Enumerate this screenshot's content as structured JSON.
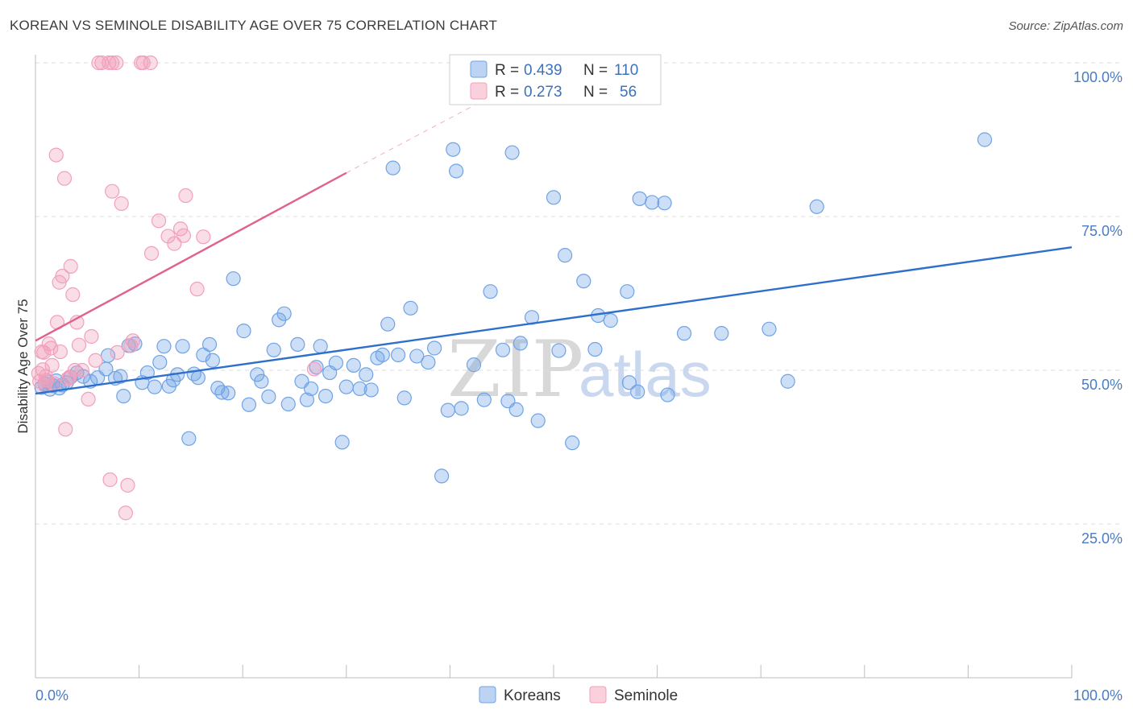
{
  "title": "KOREAN VS SEMINOLE DISABILITY AGE OVER 75 CORRELATION CHART",
  "source": "Source: ZipAtlas.com",
  "watermark": {
    "zip": "ZIP",
    "atlas": "atlas"
  },
  "chart_data": {
    "type": "scatter",
    "xlabel": "",
    "ylabel": "Disability Age Over 75",
    "xlim": [
      0,
      100
    ],
    "ylim": [
      0,
      100
    ],
    "x_tick_labels": [
      {
        "value": 0,
        "label": "0.0%"
      },
      {
        "value": 100,
        "label": "100.0%"
      }
    ],
    "y_tick_labels": [
      {
        "value": 25,
        "label": "25.0%"
      },
      {
        "value": 50,
        "label": "50.0%"
      },
      {
        "value": 75,
        "label": "75.0%"
      },
      {
        "value": 100,
        "label": "100.0%"
      }
    ],
    "grid": "dashed horizontal",
    "legend_position": "top-center",
    "legend": [
      {
        "series": "Koreans",
        "r_label": "R =",
        "r_value": "0.439",
        "n_label": "N =",
        "n_value": "110"
      },
      {
        "series": "Seminole",
        "r_label": "R =",
        "r_value": "0.273",
        "n_label": "N =",
        "n_value": "56"
      }
    ],
    "series": [
      {
        "name": "Koreans",
        "color": "#6fa3e6",
        "line_color": "#2e6fcc",
        "trend": {
          "x": [
            0,
            100
          ],
          "y": [
            46.2,
            70.0
          ],
          "dashed_after": null
        },
        "points": [
          [
            0.6,
            47.2
          ],
          [
            0.9,
            47.8
          ],
          [
            1.2,
            48.1
          ],
          [
            1.4,
            46.9
          ],
          [
            1.7,
            47.5
          ],
          [
            2.0,
            48.3
          ],
          [
            2.3,
            47.1
          ],
          [
            2.6,
            47.6
          ],
          [
            3.0,
            48.0
          ],
          [
            3.4,
            48.9
          ],
          [
            4.0,
            49.6
          ],
          [
            4.6,
            49.0
          ],
          [
            5.3,
            48.2
          ],
          [
            6.0,
            48.8
          ],
          [
            6.8,
            50.2
          ],
          [
            7.0,
            52.4
          ],
          [
            7.7,
            48.7
          ],
          [
            8.2,
            49.0
          ],
          [
            8.5,
            45.8
          ],
          [
            9.0,
            54.0
          ],
          [
            9.6,
            54.3
          ],
          [
            10.3,
            48.0
          ],
          [
            10.8,
            49.6
          ],
          [
            11.5,
            47.3
          ],
          [
            12.0,
            51.3
          ],
          [
            12.4,
            53.9
          ],
          [
            12.9,
            47.4
          ],
          [
            13.3,
            48.4
          ],
          [
            13.7,
            49.3
          ],
          [
            14.2,
            53.9
          ],
          [
            14.8,
            38.9
          ],
          [
            15.3,
            49.4
          ],
          [
            15.7,
            48.8
          ],
          [
            16.2,
            52.5
          ],
          [
            16.8,
            54.2
          ],
          [
            17.1,
            51.6
          ],
          [
            17.6,
            47.1
          ],
          [
            18.0,
            46.4
          ],
          [
            18.6,
            46.3
          ],
          [
            19.1,
            64.9
          ],
          [
            20.1,
            56.4
          ],
          [
            20.6,
            44.4
          ],
          [
            21.4,
            49.3
          ],
          [
            21.8,
            48.2
          ],
          [
            22.5,
            45.7
          ],
          [
            23.0,
            53.3
          ],
          [
            23.5,
            58.2
          ],
          [
            24.0,
            59.2
          ],
          [
            24.4,
            44.5
          ],
          [
            25.3,
            54.2
          ],
          [
            25.7,
            48.2
          ],
          [
            26.2,
            45.2
          ],
          [
            26.6,
            47.0
          ],
          [
            27.1,
            50.5
          ],
          [
            27.5,
            53.9
          ],
          [
            28.0,
            45.8
          ],
          [
            28.4,
            49.6
          ],
          [
            29.0,
            51.2
          ],
          [
            29.6,
            38.3
          ],
          [
            30.0,
            47.3
          ],
          [
            30.7,
            50.8
          ],
          [
            31.3,
            47.0
          ],
          [
            31.9,
            49.3
          ],
          [
            32.4,
            46.8
          ],
          [
            33.0,
            52.0
          ],
          [
            33.5,
            52.5
          ],
          [
            34.0,
            57.5
          ],
          [
            34.5,
            82.9
          ],
          [
            35.0,
            52.5
          ],
          [
            35.6,
            45.5
          ],
          [
            36.2,
            60.1
          ],
          [
            36.8,
            52.3
          ],
          [
            37.9,
            51.3
          ],
          [
            38.5,
            53.6
          ],
          [
            39.2,
            32.8
          ],
          [
            39.8,
            43.5
          ],
          [
            40.3,
            85.9
          ],
          [
            40.6,
            82.4
          ],
          [
            41.1,
            43.8
          ],
          [
            42.3,
            50.9
          ],
          [
            43.3,
            45.2
          ],
          [
            43.9,
            62.8
          ],
          [
            45.1,
            53.3
          ],
          [
            46.0,
            85.4
          ],
          [
            45.6,
            45.0
          ],
          [
            46.4,
            43.6
          ],
          [
            46.8,
            54.4
          ],
          [
            47.9,
            58.6
          ],
          [
            48.5,
            41.8
          ],
          [
            50.0,
            78.1
          ],
          [
            50.5,
            53.2
          ],
          [
            51.1,
            68.7
          ],
          [
            51.8,
            38.2
          ],
          [
            52.9,
            64.5
          ],
          [
            54.0,
            53.4
          ],
          [
            54.3,
            58.9
          ],
          [
            55.5,
            58.1
          ],
          [
            57.1,
            62.8
          ],
          [
            57.3,
            48.0
          ],
          [
            58.1,
            46.5
          ],
          [
            58.3,
            77.9
          ],
          [
            59.5,
            77.3
          ],
          [
            60.7,
            77.2
          ],
          [
            61.0,
            46.0
          ],
          [
            62.6,
            56.0
          ],
          [
            66.2,
            56.0
          ],
          [
            70.8,
            56.7
          ],
          [
            72.6,
            48.2
          ],
          [
            75.4,
            76.6
          ],
          [
            91.6,
            87.5
          ]
        ]
      },
      {
        "name": "Seminole",
        "color": "#f2a0ba",
        "line_color": "#e06090",
        "trend": {
          "x": [
            0,
            30
          ],
          "y": [
            54.8,
            82.1
          ],
          "dashed_to": [
            44.5,
            95.0
          ]
        },
        "points": [
          [
            0.3,
            49.5
          ],
          [
            0.4,
            48.2
          ],
          [
            0.6,
            53.0
          ],
          [
            0.7,
            50.1
          ],
          [
            0.8,
            52.9
          ],
          [
            0.9,
            47.6
          ],
          [
            1.0,
            49.0
          ],
          [
            1.1,
            48.4
          ],
          [
            1.3,
            54.3
          ],
          [
            1.5,
            53.6
          ],
          [
            1.6,
            50.8
          ],
          [
            1.8,
            47.8
          ],
          [
            2.0,
            85.0
          ],
          [
            2.1,
            57.8
          ],
          [
            2.3,
            64.3
          ],
          [
            2.4,
            53.0
          ],
          [
            2.6,
            65.3
          ],
          [
            2.8,
            81.2
          ],
          [
            2.9,
            40.4
          ],
          [
            3.1,
            48.6
          ],
          [
            3.3,
            48.9
          ],
          [
            3.4,
            66.9
          ],
          [
            3.6,
            62.3
          ],
          [
            3.8,
            50.0
          ],
          [
            4.0,
            57.8
          ],
          [
            4.2,
            54.1
          ],
          [
            4.5,
            50.0
          ],
          [
            5.1,
            45.3
          ],
          [
            5.4,
            55.5
          ],
          [
            5.8,
            51.6
          ],
          [
            6.1,
            100.0
          ],
          [
            6.4,
            100.0
          ],
          [
            7.1,
            100.0
          ],
          [
            7.4,
            100.0
          ],
          [
            7.8,
            100.0
          ],
          [
            7.2,
            32.2
          ],
          [
            7.4,
            79.1
          ],
          [
            7.9,
            52.9
          ],
          [
            8.3,
            77.1
          ],
          [
            8.7,
            26.8
          ],
          [
            8.9,
            31.3
          ],
          [
            9.2,
            54.0
          ],
          [
            9.4,
            54.8
          ],
          [
            10.2,
            100.0
          ],
          [
            10.4,
            100.0
          ],
          [
            11.1,
            100.0
          ],
          [
            11.2,
            69.0
          ],
          [
            11.9,
            74.3
          ],
          [
            12.8,
            71.8
          ],
          [
            13.4,
            70.6
          ],
          [
            14.0,
            73.0
          ],
          [
            14.3,
            71.9
          ],
          [
            14.5,
            78.4
          ],
          [
            15.6,
            63.2
          ],
          [
            16.2,
            71.7
          ],
          [
            26.9,
            50.2
          ]
        ]
      }
    ]
  },
  "bottom_legend": [
    "Koreans",
    "Seminole"
  ]
}
